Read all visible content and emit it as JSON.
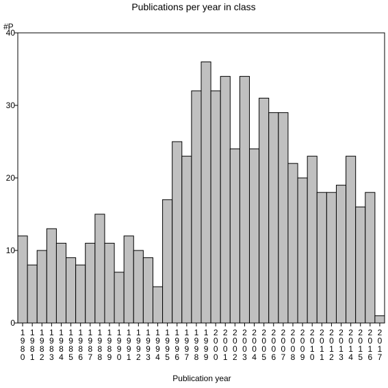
{
  "chart_data": {
    "type": "bar",
    "title": "Publications per year in class",
    "ylabel": "#P",
    "xlabel": "Publication year",
    "ylim": [
      0,
      40
    ],
    "yticks": [
      0,
      10,
      20,
      30,
      40
    ],
    "grid": false,
    "legend": "none",
    "bar_color": "#c0c0c0",
    "categories": [
      "1980",
      "1981",
      "1982",
      "1983",
      "1984",
      "1985",
      "1986",
      "1987",
      "1988",
      "1989",
      "1990",
      "1991",
      "1992",
      "1993",
      "1994",
      "1995",
      "1996",
      "1997",
      "1998",
      "1999",
      "2000",
      "2001",
      "2002",
      "2003",
      "2004",
      "2005",
      "2006",
      "2007",
      "2008",
      "2009",
      "2010",
      "2011",
      "2012",
      "2013",
      "2014",
      "2015",
      "2016",
      "2017"
    ],
    "values": [
      12,
      8,
      10,
      13,
      11,
      9,
      8,
      11,
      15,
      11,
      7,
      12,
      10,
      9,
      5,
      17,
      25,
      23,
      32,
      36,
      32,
      34,
      24,
      34,
      24,
      31,
      29,
      29,
      22,
      20,
      23,
      18,
      18,
      19,
      23,
      16,
      18,
      1
    ]
  }
}
